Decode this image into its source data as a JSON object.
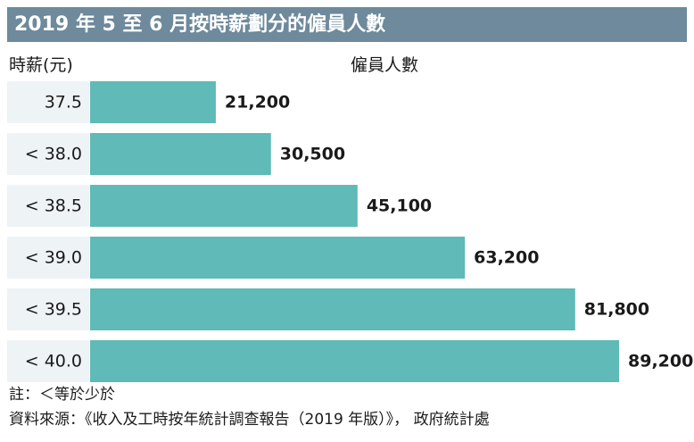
{
  "header": {
    "title": "2019 年 5 至 6 月按時薪劃分的僱員人數"
  },
  "chart_data": {
    "type": "bar",
    "orientation": "horizontal",
    "title": "2019 年 5 至 6 月按時薪劃分的僱員人數",
    "xlabel": "僱員人數",
    "ylabel": "時薪(元)",
    "categories": [
      "37.5",
      "< 38.0",
      "< 38.5",
      "< 39.0",
      "< 39.5",
      "< 40.0"
    ],
    "values": [
      21200,
      30500,
      45100,
      63200,
      81800,
      89200
    ],
    "value_labels": [
      "21,200",
      "30,500",
      "45,100",
      "63,200",
      "81,800",
      "89,200"
    ],
    "xlim": [
      0,
      89200
    ],
    "grid": false,
    "legend": "none"
  },
  "notes": {
    "note": "註：＜等於少於",
    "source": "資料來源：《收入及工時按年統計調查報告（2019 年版）》， 政府統計處"
  },
  "colors": {
    "title_bg": "#6e8a9c",
    "bar": "#5fbab8",
    "label_bg": "#eef3f6"
  }
}
